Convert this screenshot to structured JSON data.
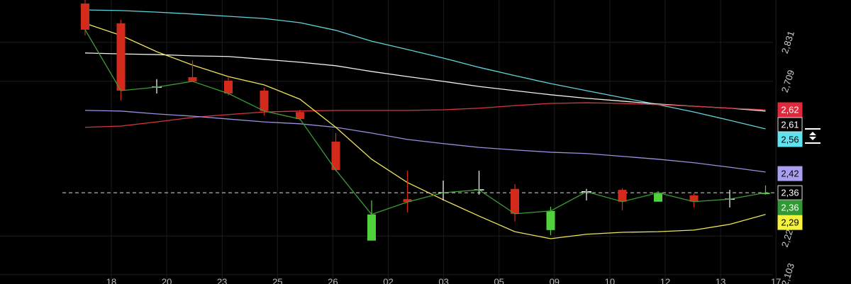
{
  "chart_data": {
    "type": "candlestick",
    "ylim": [
      2.074,
      2.964
    ],
    "yticks": [
      {
        "value": 2.831,
        "label": "2,831"
      },
      {
        "value": 2.709,
        "label": "2,709"
      },
      {
        "value": 2.224,
        "label": "2,224"
      },
      {
        "value": 2.103,
        "label": "2,103"
      }
    ],
    "x_axis_labels": [
      "18",
      "20",
      "23",
      "25",
      "26",
      "02",
      "03",
      "05",
      "09",
      "10",
      "12",
      "13",
      "17"
    ],
    "up_color": "#4fd23c",
    "down_color": "#d42a1c",
    "doji_color": "#ffffff",
    "close_line_color": "#3c9c35",
    "open": [
      2.953,
      2.891,
      2.691,
      2.722,
      2.711,
      2.68,
      2.613,
      2.52,
      2.21,
      2.34,
      2.36,
      2.369,
      2.372,
      2.243,
      2.363,
      2.369,
      2.332,
      2.352,
      2.34,
      2.358
    ],
    "high": [
      2.964,
      2.902,
      2.716,
      2.775,
      2.724,
      2.689,
      2.62,
      2.547,
      2.336,
      2.429,
      2.398,
      2.429,
      2.387,
      2.316,
      2.372,
      2.374,
      2.365,
      2.358,
      2.369,
      2.383
    ],
    "low": [
      2.853,
      2.649,
      2.671,
      2.709,
      2.665,
      2.602,
      2.587,
      2.427,
      2.21,
      2.298,
      2.336,
      2.354,
      2.27,
      2.227,
      2.336,
      2.305,
      2.332,
      2.314,
      2.314,
      2.354
    ],
    "close": [
      2.871,
      2.68,
      2.691,
      2.709,
      2.671,
      2.616,
      2.591,
      2.431,
      2.292,
      2.331,
      2.36,
      2.369,
      2.294,
      2.303,
      2.363,
      2.332,
      2.36,
      2.332,
      2.34,
      2.36
    ],
    "series": [
      {
        "color": "#5fd3dc",
        "values": [
          2.933,
          2.931,
          2.926,
          2.92,
          2.913,
          2.906,
          2.893,
          2.869,
          2.835,
          2.809,
          2.782,
          2.753,
          2.727,
          2.702,
          2.68,
          2.658,
          2.636,
          2.613,
          2.587,
          2.56
        ]
      },
      {
        "color": "#f2f2e6",
        "values": [
          2.798,
          2.795,
          2.793,
          2.789,
          2.787,
          2.778,
          2.769,
          2.758,
          2.74,
          2.724,
          2.709,
          2.693,
          2.68,
          2.667,
          2.656,
          2.647,
          2.638,
          2.631,
          2.625,
          2.616
        ]
      },
      {
        "color": "#d8353f",
        "values": [
          2.565,
          2.569,
          2.582,
          2.596,
          2.605,
          2.613,
          2.616,
          2.618,
          2.618,
          2.618,
          2.62,
          2.625,
          2.633,
          2.64,
          2.642,
          2.64,
          2.636,
          2.631,
          2.625,
          2.62
        ]
      },
      {
        "color": "#9b8fe0",
        "values": [
          2.618,
          2.616,
          2.607,
          2.6,
          2.591,
          2.582,
          2.576,
          2.565,
          2.547,
          2.527,
          2.514,
          2.502,
          2.494,
          2.487,
          2.483,
          2.474,
          2.465,
          2.454,
          2.44,
          2.425
        ]
      },
      {
        "color": "#eee35a",
        "values": [
          2.891,
          2.853,
          2.802,
          2.76,
          2.724,
          2.698,
          2.653,
          2.565,
          2.465,
          2.392,
          2.338,
          2.287,
          2.238,
          2.216,
          2.23,
          2.236,
          2.238,
          2.243,
          2.261,
          2.292
        ]
      }
    ],
    "price_labels": [
      {
        "value": 2.62,
        "label": "2,62",
        "color": "#e0283c",
        "text_color": "#ffffff"
      },
      {
        "value": 2.61,
        "label": "2,61",
        "color": "#000000",
        "text_color": "#ffffff"
      },
      {
        "value": 2.56,
        "label": "2,56",
        "color": "#5fe3ee",
        "text_color": "#000000"
      },
      {
        "value": 2.42,
        "label": "2,42",
        "color": "#a99ff0",
        "text_color": "#000000"
      },
      {
        "value": 2.36,
        "label": "2,36",
        "color": "#000000",
        "text_color": "#ffffff"
      },
      {
        "value": 2.36,
        "label": "2,36",
        "color": "#2f9a32",
        "text_color": "#ffffff"
      },
      {
        "value": 2.29,
        "label": "2,29",
        "color": "#f4f23a",
        "text_color": "#000000"
      }
    ]
  }
}
